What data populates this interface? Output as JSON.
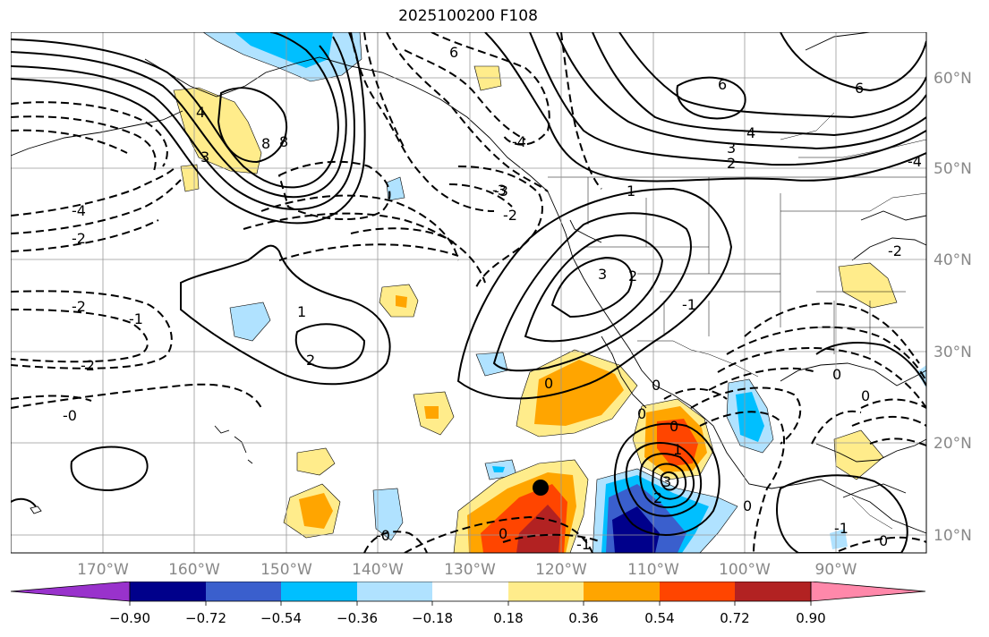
{
  "title": "2025100200 F108",
  "longitude_labels": [
    "170°W",
    "160°W",
    "150°W",
    "140°W",
    "130°W",
    "120°W",
    "110°W",
    "100°W",
    "90°W"
  ],
  "latitude_labels": [
    "60°N",
    "50°N",
    "40°N",
    "30°N",
    "20°N",
    "10°N"
  ],
  "contour_labels": [
    "6",
    "4",
    "8",
    "3",
    "-3",
    "6",
    "4",
    "3",
    "2",
    "-4",
    "-2",
    "-2",
    "-1",
    "-2",
    "-0",
    "1",
    "2",
    "1",
    "3",
    "2",
    "-2",
    "-3",
    "-4",
    "-1",
    "0",
    "0",
    "0",
    "1",
    "0",
    "3",
    "2",
    "0",
    "-0",
    "-1",
    "0",
    "0",
    "0",
    "0",
    "6",
    "8",
    "-1",
    "-2",
    "-4"
  ],
  "colorbar": {
    "ticks": [
      "−0.90",
      "−0.72",
      "−0.54",
      "−0.36",
      "−0.18",
      "0.18",
      "0.36",
      "0.54",
      "0.72",
      "0.90"
    ],
    "colors": [
      "#9932cc",
      "#00008b",
      "#3a5fcd",
      "#00bfff",
      "#b0e2ff",
      "#ffffff",
      "#ffec8b",
      "#ffa500",
      "#ff4500",
      "#b22222",
      "#ff88aa"
    ]
  },
  "marker": "storm-center"
}
